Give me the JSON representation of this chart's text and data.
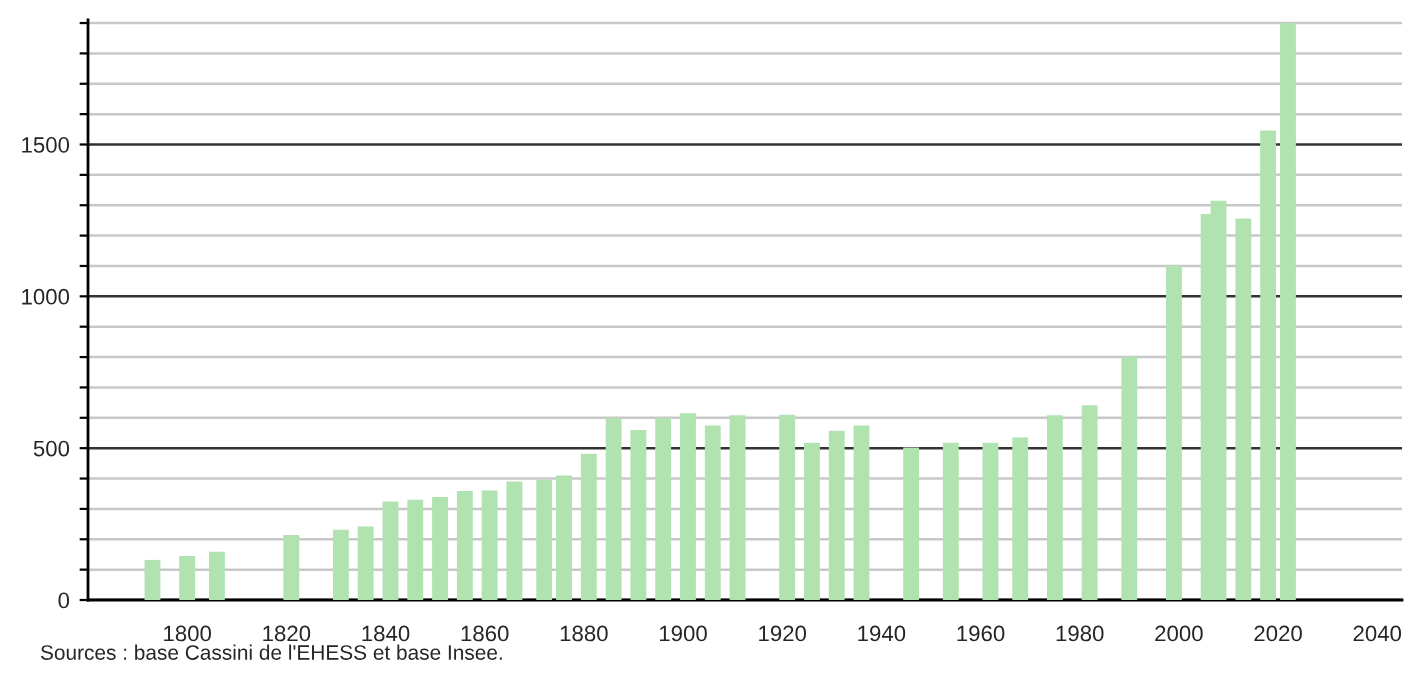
{
  "chart_data": {
    "type": "bar",
    "x": [
      1793,
      1800,
      1806,
      1821,
      1831,
      1836,
      1841,
      1846,
      1851,
      1856,
      1861,
      1866,
      1872,
      1876,
      1881,
      1886,
      1891,
      1896,
      1901,
      1906,
      1911,
      1921,
      1926,
      1931,
      1936,
      1946,
      1954,
      1962,
      1968,
      1975,
      1982,
      1990,
      1999,
      2006,
      2008,
      2013,
      2018,
      2022
    ],
    "values": [
      132,
      145,
      159,
      214,
      231,
      242,
      324,
      330,
      339,
      359,
      361,
      390,
      396,
      410,
      482,
      599,
      560,
      599,
      615,
      575,
      608,
      610,
      518,
      557,
      575,
      502,
      518,
      518,
      535,
      608,
      641,
      800,
      1101,
      1271,
      1315,
      1256,
      1546,
      1900
    ],
    "color": "#b0e3b0",
    "xlim": [
      1780,
      2045
    ],
    "xticks": [
      1800,
      1820,
      1840,
      1860,
      1880,
      1900,
      1920,
      1940,
      1960,
      1980,
      2000,
      2020,
      2040
    ],
    "ylim": [
      0,
      1910
    ],
    "yticks": [
      0,
      {
        "value": 100,
        "label": null
      },
      {
        "value": 200,
        "label": null
      },
      {
        "value": 300,
        "label": null
      },
      {
        "value": 400,
        "label": null
      },
      500,
      {
        "value": 600,
        "label": null
      },
      {
        "value": 700,
        "label": null
      },
      {
        "value": 800,
        "label": null
      },
      {
        "value": 900,
        "label": null
      },
      1000,
      {
        "value": 1100,
        "label": null
      },
      {
        "value": 1200,
        "label": null
      },
      {
        "value": 1300,
        "label": null
      },
      {
        "value": 1400,
        "label": null
      },
      1500,
      {
        "value": 1600,
        "label": null
      },
      {
        "value": 1700,
        "label": null
      },
      {
        "value": 1800,
        "label": null
      },
      {
        "value": 1900,
        "label": null
      }
    ],
    "grid": "y",
    "annotations": [
      "Sources : base Cassini de l'EHESS et base Insee."
    ]
  }
}
